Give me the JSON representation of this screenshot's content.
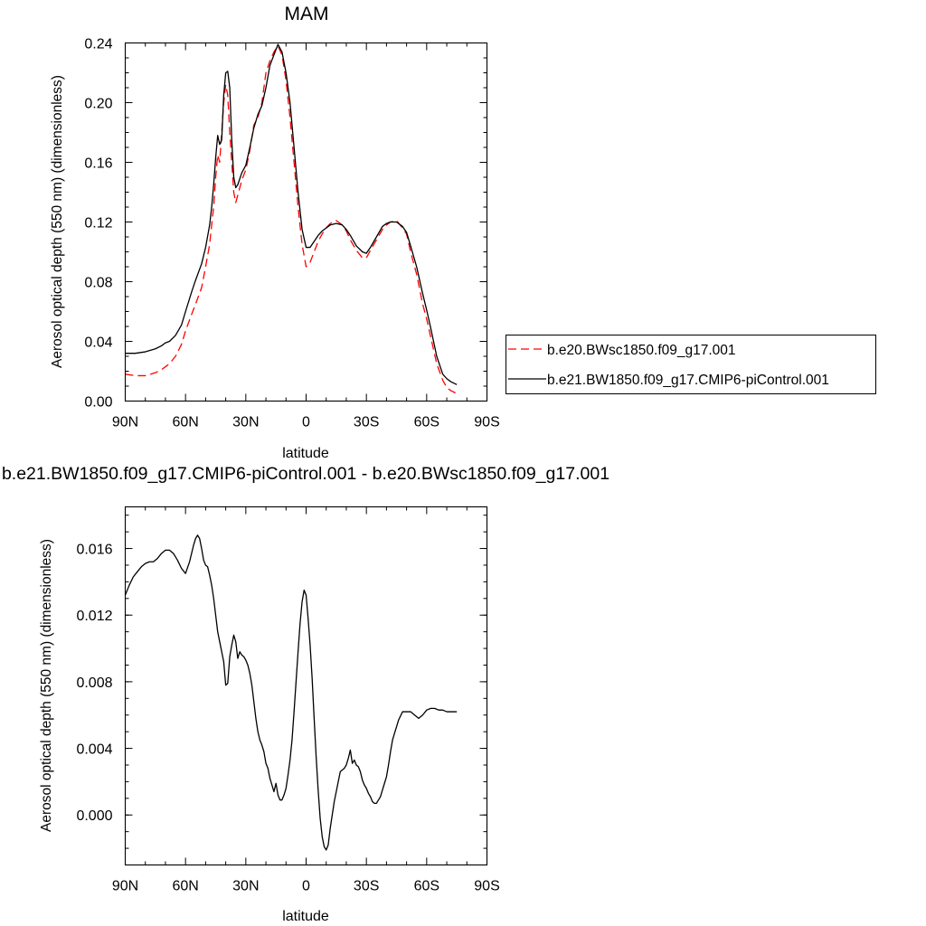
{
  "chart_data": [
    {
      "type": "line",
      "title": "MAM",
      "xlabel": "latitude",
      "ylabel": "Aerosol optical depth (550 nm) (dimensionless)",
      "xlim": [
        90,
        -90
      ],
      "ylim": [
        0.0,
        0.24
      ],
      "x_tick_labels": [
        "90N",
        "60N",
        "30N",
        "0",
        "30S",
        "60S",
        "90S"
      ],
      "x_tick_values": [
        90,
        60,
        30,
        0,
        -30,
        -60,
        -90
      ],
      "y_tick_labels": [
        "0.00",
        "0.04",
        "0.08",
        "0.12",
        "0.16",
        "0.20",
        "0.24"
      ],
      "y_tick_values": [
        0.0,
        0.04,
        0.08,
        0.12,
        0.16,
        0.2,
        0.24
      ],
      "legend_position": "right",
      "series": [
        {
          "name": "b.e20.BWsc1850.f09_g17.001",
          "color": "#ff0000",
          "dash": "dashed",
          "x": [
            90,
            85,
            80,
            75,
            72,
            70,
            68,
            65,
            62,
            60,
            57,
            55,
            52,
            50,
            48,
            47,
            46,
            45,
            44,
            43,
            42,
            41,
            40,
            39,
            38,
            37,
            36,
            35,
            34,
            32,
            30,
            28,
            26,
            24,
            22,
            20,
            18,
            16,
            14,
            12,
            10,
            8,
            6,
            4,
            2,
            0,
            -2,
            -4,
            -6,
            -8,
            -10,
            -12,
            -15,
            -18,
            -20,
            -22,
            -25,
            -28,
            -30,
            -32,
            -35,
            -38,
            -40,
            -42,
            -45,
            -48,
            -50,
            -52,
            -55,
            -58,
            -60,
            -62,
            -65,
            -68,
            -70,
            -72,
            -75
          ],
          "y": [
            0.018,
            0.017,
            0.017,
            0.019,
            0.021,
            0.023,
            0.025,
            0.03,
            0.038,
            0.047,
            0.058,
            0.065,
            0.076,
            0.09,
            0.105,
            0.118,
            0.13,
            0.15,
            0.165,
            0.16,
            0.18,
            0.2,
            0.212,
            0.205,
            0.18,
            0.16,
            0.14,
            0.133,
            0.138,
            0.148,
            0.155,
            0.168,
            0.185,
            0.19,
            0.2,
            0.22,
            0.228,
            0.234,
            0.238,
            0.232,
            0.215,
            0.19,
            0.16,
            0.13,
            0.105,
            0.09,
            0.093,
            0.1,
            0.107,
            0.112,
            0.116,
            0.119,
            0.121,
            0.118,
            0.114,
            0.108,
            0.101,
            0.096,
            0.096,
            0.101,
            0.108,
            0.115,
            0.118,
            0.12,
            0.121,
            0.116,
            0.112,
            0.1,
            0.085,
            0.065,
            0.055,
            0.043,
            0.025,
            0.014,
            0.009,
            0.007,
            0.005
          ]
        },
        {
          "name": "b.e21.BW1850.f09_g17.CMIP6-piControl.001",
          "color": "#000000",
          "dash": "solid",
          "x": [
            90,
            85,
            80,
            75,
            72,
            70,
            68,
            65,
            62,
            60,
            57,
            55,
            52,
            50,
            48,
            47,
            46,
            45,
            44,
            43,
            42,
            41,
            40,
            39,
            38,
            37,
            36,
            35,
            34,
            32,
            30,
            28,
            26,
            24,
            22,
            20,
            18,
            16,
            14,
            12,
            10,
            8,
            6,
            4,
            2,
            0,
            -2,
            -4,
            -6,
            -8,
            -10,
            -12,
            -15,
            -18,
            -20,
            -22,
            -25,
            -28,
            -30,
            -32,
            -35,
            -38,
            -40,
            -42,
            -45,
            -48,
            -50,
            -52,
            -55,
            -58,
            -60,
            -62,
            -65,
            -68,
            -70,
            -72,
            -75
          ],
          "y": [
            0.032,
            0.032,
            0.033,
            0.035,
            0.037,
            0.039,
            0.04,
            0.044,
            0.051,
            0.06,
            0.073,
            0.081,
            0.092,
            0.103,
            0.118,
            0.13,
            0.145,
            0.163,
            0.178,
            0.172,
            0.175,
            0.205,
            0.22,
            0.221,
            0.21,
            0.175,
            0.15,
            0.143,
            0.145,
            0.153,
            0.158,
            0.17,
            0.183,
            0.192,
            0.198,
            0.21,
            0.225,
            0.232,
            0.239,
            0.234,
            0.22,
            0.2,
            0.17,
            0.14,
            0.115,
            0.103,
            0.103,
            0.107,
            0.111,
            0.114,
            0.116,
            0.118,
            0.119,
            0.118,
            0.115,
            0.111,
            0.104,
            0.1,
            0.099,
            0.103,
            0.11,
            0.117,
            0.119,
            0.12,
            0.12,
            0.117,
            0.113,
            0.104,
            0.09,
            0.072,
            0.061,
            0.049,
            0.03,
            0.018,
            0.015,
            0.013,
            0.011
          ]
        }
      ]
    },
    {
      "type": "line",
      "title": "b.e21.BW1850.f09_g17.CMIP6-piControl.001 - b.e20.BWsc1850.f09_g17.001",
      "xlabel": "latitude",
      "ylabel": "Aerosol optical depth (550 nm) (dimensionless)",
      "xlim": [
        90,
        -90
      ],
      "ylim": [
        -0.003,
        0.0185
      ],
      "x_tick_labels": [
        "90N",
        "60N",
        "30N",
        "0",
        "30S",
        "60S",
        "90S"
      ],
      "x_tick_values": [
        90,
        60,
        30,
        0,
        -30,
        -60,
        -90
      ],
      "y_tick_labels": [
        "0.000",
        "0.004",
        "0.008",
        "0.012",
        "0.016"
      ],
      "y_tick_values": [
        0.0,
        0.004,
        0.008,
        0.012,
        0.016
      ],
      "series": [
        {
          "color": "#000000",
          "dash": "solid",
          "x": [
            90,
            88,
            86,
            84,
            82,
            80,
            78,
            76,
            74,
            72,
            70,
            68,
            66,
            64,
            62,
            60,
            58,
            56,
            55,
            54,
            53,
            52,
            51,
            50,
            49,
            48,
            47,
            46,
            45,
            44,
            43,
            42,
            41,
            40,
            39,
            38,
            37,
            36,
            35,
            34,
            33,
            32,
            31,
            30,
            29,
            28,
            27,
            26,
            25,
            24,
            23,
            22,
            21,
            20,
            19,
            18,
            17,
            16,
            15,
            14,
            13,
            12,
            11,
            10,
            9,
            8,
            7,
            6,
            5,
            4,
            3,
            2,
            1,
            0,
            -1,
            -2,
            -3,
            -4,
            -5,
            -6,
            -7,
            -8,
            -9,
            -10,
            -11,
            -12,
            -13,
            -14,
            -15,
            -16,
            -17,
            -18,
            -19,
            -20,
            -21,
            -22,
            -23,
            -24,
            -25,
            -26,
            -27,
            -28,
            -29,
            -30,
            -31,
            -32,
            -33,
            -34,
            -35,
            -36,
            -37,
            -38,
            -39,
            -40,
            -41,
            -42,
            -43,
            -44,
            -45,
            -46,
            -48,
            -50,
            -52,
            -54,
            -56,
            -58,
            -60,
            -62,
            -64,
            -66,
            -68,
            -70,
            -72,
            -74,
            -75
          ],
          "y": [
            0.0132,
            0.0138,
            0.0143,
            0.0146,
            0.0149,
            0.0151,
            0.0152,
            0.0152,
            0.0154,
            0.0157,
            0.0159,
            0.0159,
            0.0157,
            0.0153,
            0.0148,
            0.0145,
            0.0152,
            0.0162,
            0.0166,
            0.0168,
            0.0166,
            0.016,
            0.0153,
            0.015,
            0.0149,
            0.0144,
            0.0138,
            0.013,
            0.012,
            0.011,
            0.0104,
            0.0098,
            0.0092,
            0.0078,
            0.0079,
            0.0095,
            0.0102,
            0.0108,
            0.0104,
            0.0094,
            0.0098,
            0.0096,
            0.0095,
            0.0093,
            0.009,
            0.0085,
            0.0078,
            0.0068,
            0.0058,
            0.005,
            0.0045,
            0.0042,
            0.0038,
            0.0031,
            0.0028,
            0.0022,
            0.0018,
            0.0014,
            0.0019,
            0.0012,
            0.0009,
            0.0009,
            0.0012,
            0.0016,
            0.0024,
            0.0033,
            0.0045,
            0.0062,
            0.008,
            0.0098,
            0.0115,
            0.0128,
            0.0135,
            0.0132,
            0.0118,
            0.0102,
            0.0082,
            0.0058,
            0.0035,
            0.0015,
            -0.0002,
            -0.0013,
            -0.0019,
            -0.0021,
            -0.0018,
            -0.0008,
            0.0,
            0.0008,
            0.0014,
            0.002,
            0.0026,
            0.0027,
            0.0028,
            0.003,
            0.0034,
            0.0039,
            0.0031,
            0.0033,
            0.003,
            0.0029,
            0.0026,
            0.0021,
            0.0018,
            0.0016,
            0.0013,
            0.0011,
            0.0008,
            0.0007,
            0.0007,
            0.0009,
            0.0011,
            0.0015,
            0.0019,
            0.0023,
            0.003,
            0.0038,
            0.0045,
            0.0049,
            0.0053,
            0.0057,
            0.0062,
            0.0062,
            0.0062,
            0.006,
            0.0058,
            0.006,
            0.0063,
            0.0064,
            0.0064,
            0.0063,
            0.0063,
            0.0062,
            0.0062,
            0.0062,
            0.0062
          ]
        }
      ]
    }
  ]
}
